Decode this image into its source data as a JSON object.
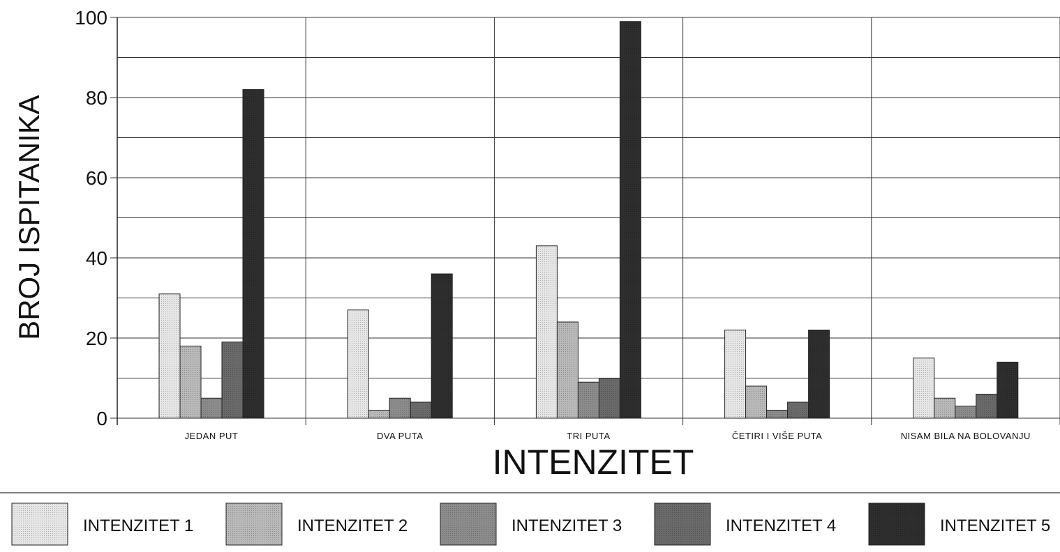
{
  "chart_data": {
    "type": "bar",
    "title": "",
    "xlabel": "INTENZITET",
    "ylabel": "BROJ ISPITANIKA",
    "ylim": [
      0,
      100
    ],
    "yticks": [
      "0",
      "20",
      "40",
      "60",
      "80",
      "100"
    ],
    "grid": true,
    "legend_position": "bottom",
    "categories": [
      "JEDAN  PUT",
      "DVA  PUTA",
      "TRI  PUTA",
      "ČETIRI  I  VIŠE  PUTA",
      "NISAM  BILA  NA   BOLOVANJU"
    ],
    "series": [
      {
        "name": "INTENZITET  1",
        "values": [
          31,
          27,
          43,
          22,
          15
        ],
        "color": "#e6e6e6"
      },
      {
        "name": "INTENZITET  2",
        "values": [
          18,
          2,
          24,
          8,
          5
        ],
        "color": "#b9b9b9"
      },
      {
        "name": "INTENZITET  3",
        "values": [
          5,
          5,
          9,
          2,
          3
        ],
        "color": "#8c8c8c"
      },
      {
        "name": "INTENZITET  4",
        "values": [
          19,
          4,
          10,
          4,
          6
        ],
        "color": "#6a6a6a"
      },
      {
        "name": "INTENZITET  5",
        "values": [
          82,
          36,
          99,
          22,
          14
        ],
        "color": "#2e2e2e"
      }
    ]
  }
}
